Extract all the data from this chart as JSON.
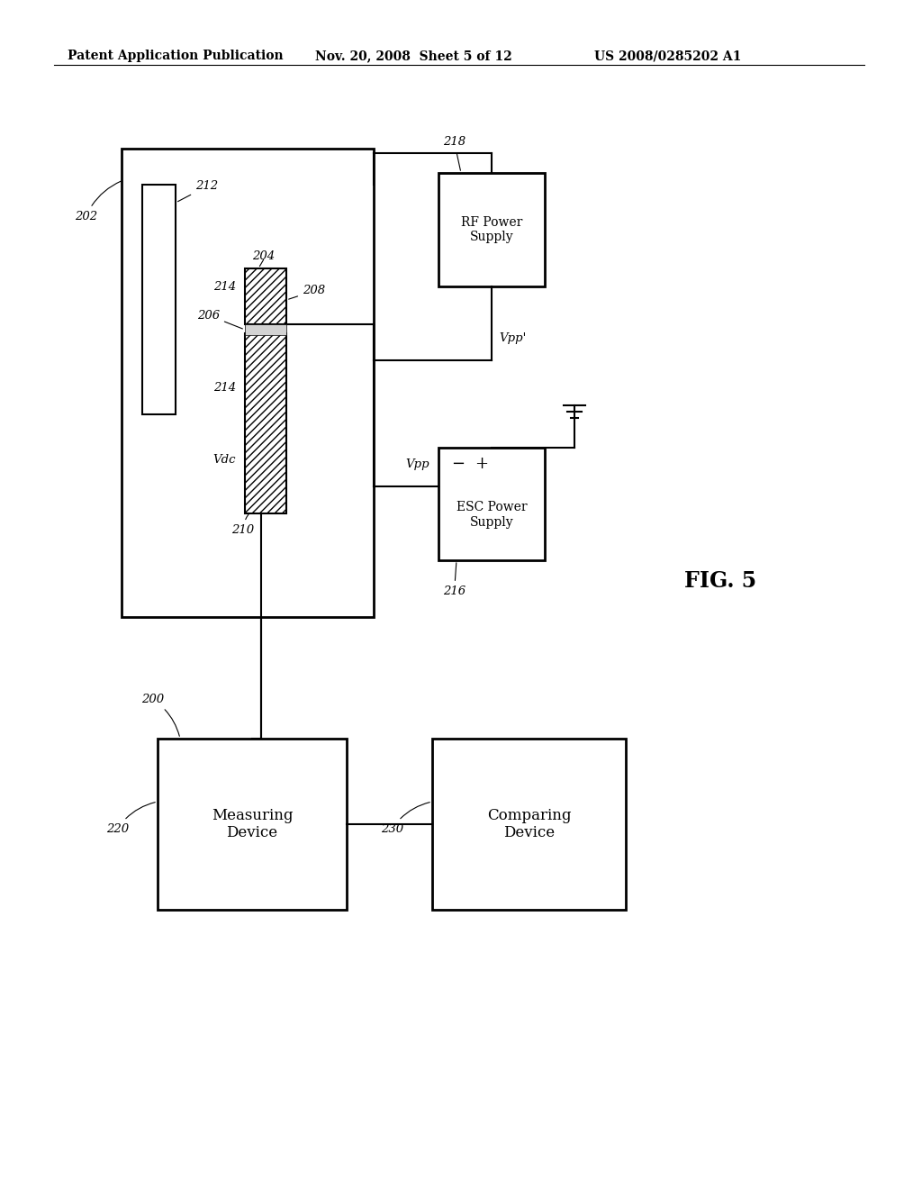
{
  "bg_color": "#ffffff",
  "header_text": "Patent Application Publication",
  "header_date": "Nov. 20, 2008  Sheet 5 of 12",
  "header_patent": "US 2008/0285202 A1",
  "fig_label": "FIG. 5",
  "system_label": "200",
  "chamber_label": "202",
  "electrode_upper_label": "212",
  "electrode_lower_label": "214",
  "wafer_label": "206",
  "chuck_label": "204",
  "probe_label": "208",
  "pedestal_label": "210",
  "line_216": "216",
  "line_218": "218",
  "vpp_label": "Vpp",
  "vpp_prime_label": "Vpp'",
  "vdc_label": "Vdc",
  "label_214b": "214",
  "rf_box_label": "RF Power\nSupply",
  "esc_box_label": "ESC Power\nSupply",
  "measuring_label": "Measuring\nDevice",
  "comparing_label": "Comparing\nDevice",
  "measuring_num": "220",
  "comparing_num": "230"
}
